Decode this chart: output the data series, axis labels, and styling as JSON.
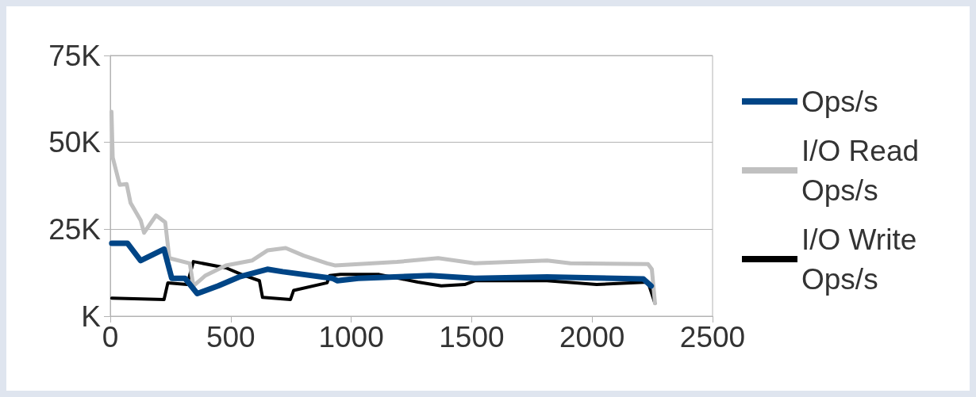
{
  "chart_data": {
    "type": "line",
    "xlim": [
      0,
      2500
    ],
    "xticks": [
      0,
      500,
      1000,
      1500,
      2000,
      2500
    ],
    "ylim": [
      0,
      75
    ],
    "yticks": [
      {
        "value": 0,
        "label": "K"
      },
      {
        "value": 25,
        "label": "25K"
      },
      {
        "value": 50,
        "label": "50K"
      },
      {
        "value": 75,
        "label": "75K"
      }
    ],
    "grid": "y",
    "legend": "right",
    "marker": "none",
    "line_style": "solid",
    "series": [
      {
        "name": "Ops/s",
        "color": "#004586",
        "x": [
          6,
          71,
          126,
          223,
          255,
          310,
          361,
          448,
          535,
          652,
          716,
          922,
          943,
          1029,
          1329,
          1513,
          1813,
          2213,
          2245
        ],
        "values": [
          21,
          21,
          16,
          19.3,
          10.9,
          10.9,
          6.5,
          8.7,
          11.3,
          13.5,
          12.8,
          10.9,
          10.2,
          10.9,
          11.7,
          10.9,
          11.3,
          10.7,
          8.7
        ]
      },
      {
        "name": "I/O Read Ops/s",
        "color": "#c0c0c0",
        "x": [
          5,
          10,
          39,
          68,
          84,
          126,
          140,
          190,
          228,
          245,
          330,
          345,
          395,
          480,
          588,
          652,
          728,
          803,
          900,
          932,
          1190,
          1361,
          1513,
          1813,
          1910,
          2232,
          2248,
          2261
        ],
        "values": [
          58.8,
          45.7,
          37.8,
          38,
          32.6,
          27.6,
          24,
          29,
          27,
          16.7,
          15.2,
          8.7,
          11.7,
          14.6,
          16,
          18.9,
          19.6,
          17.4,
          15.2,
          14.6,
          15.6,
          16.7,
          15.2,
          16,
          15.2,
          15,
          13.5,
          3.7
        ]
      },
      {
        "name": "I/O Write Ops/s",
        "color": "#000000",
        "x": [
          6,
          223,
          239,
          319,
          345,
          480,
          545,
          619,
          632,
          748,
          761,
          900,
          910,
          955,
          1116,
          1277,
          1374,
          1471,
          1513,
          1813,
          2019,
          2232,
          2261
        ],
        "values": [
          5.2,
          4.8,
          9.6,
          9.1,
          15.7,
          13.9,
          12,
          10.2,
          5.4,
          4.8,
          7.4,
          9.6,
          11.7,
          12,
          12,
          9.8,
          8.7,
          9.1,
          10.2,
          10.2,
          9.1,
          9.8,
          3.7
        ]
      }
    ]
  }
}
